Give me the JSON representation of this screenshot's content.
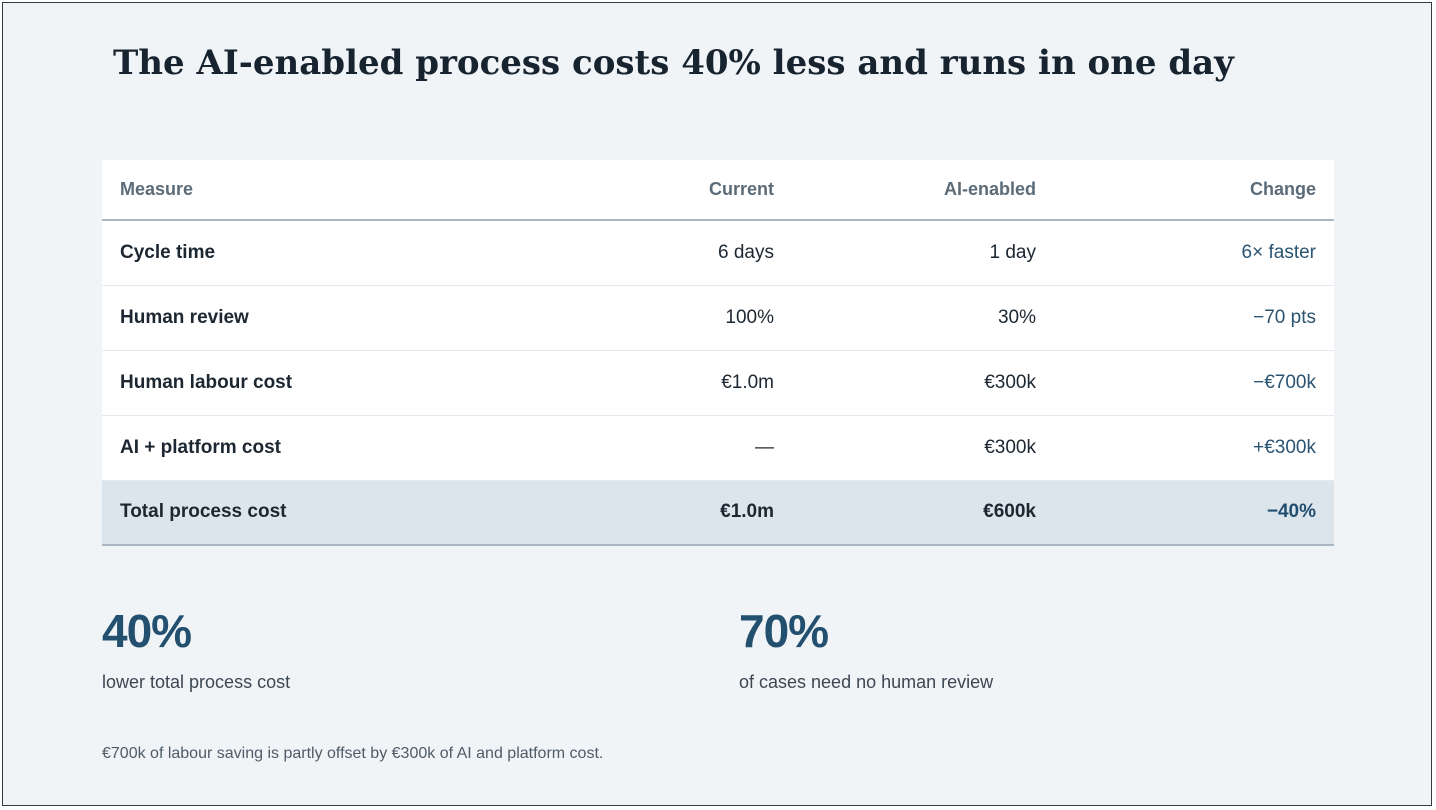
{
  "title": "The AI-enabled process costs 40% less and runs in one day",
  "table": {
    "headers": {
      "measure": "Measure",
      "current": "Current",
      "ai_enabled": "AI-enabled",
      "change": "Change"
    },
    "rows": [
      {
        "measure": "Cycle time",
        "current": "6 days",
        "ai_enabled": "1 day",
        "change": "6× faster"
      },
      {
        "measure": "Human review",
        "current": "100%",
        "ai_enabled": "30%",
        "change": "−70 pts"
      },
      {
        "measure": "Human labour cost",
        "current": "€1.0m",
        "ai_enabled": "€300k",
        "change": "−€700k"
      },
      {
        "measure": "AI + platform cost",
        "current": "—",
        "ai_enabled": "€300k",
        "change": "+€300k"
      }
    ],
    "total": {
      "measure": "Total process cost",
      "current": "€1.0m",
      "ai_enabled": "€600k",
      "change": "−40%"
    }
  },
  "stats": [
    {
      "value": "40%",
      "label": "lower total process cost"
    },
    {
      "value": "70%",
      "label": "of cases need no human review"
    }
  ],
  "footnote": "€700k of labour saving is partly offset by €300k of AI and platform cost.",
  "colors": {
    "background": "#f0f4f7",
    "title": "#17242f",
    "accent": "#23506f",
    "change_text": "#2a5472",
    "total_row": "#dde5ec"
  }
}
